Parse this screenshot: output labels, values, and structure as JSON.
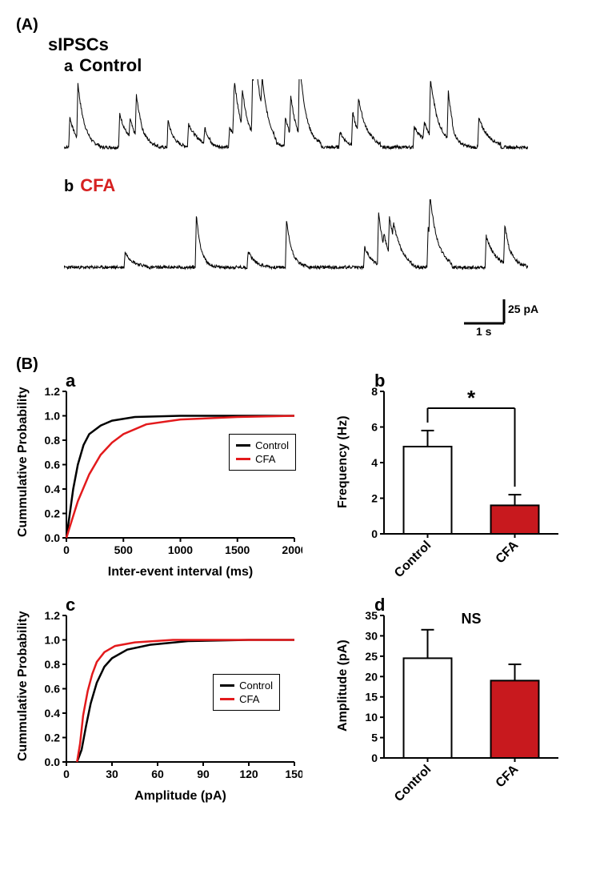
{
  "figure": {
    "panelA": {
      "label": "(A)",
      "heading": "sIPSCs",
      "traces": {
        "a": {
          "sublabel": "a",
          "title": "Control",
          "title_color": "#000000"
        },
        "b": {
          "sublabel": "b",
          "title": "CFA",
          "title_color": "#d62020"
        }
      },
      "scalebar": {
        "y_text": "25 pA",
        "x_text": "1 s"
      },
      "trace_color": "#000000",
      "trace_linewidth": 1.0
    },
    "panelB": {
      "label": "(B)",
      "charts": {
        "a": {
          "sublabel": "a",
          "type": "line",
          "xlabel": "Inter-event interval (ms)",
          "ylabel": "Cummulative Probability",
          "xlim": [
            0,
            2000
          ],
          "xticks": [
            0,
            500,
            1000,
            1500,
            2000
          ],
          "ylim": [
            0,
            1.2
          ],
          "yticks": [
            0.0,
            0.2,
            0.4,
            0.6,
            0.8,
            1.0,
            1.2
          ],
          "series": [
            {
              "name": "Control",
              "color": "#000000",
              "points": [
                [
                  0,
                  0
                ],
                [
                  30,
                  0.2
                ],
                [
                  60,
                  0.4
                ],
                [
                  100,
                  0.6
                ],
                [
                  150,
                  0.76
                ],
                [
                  200,
                  0.85
                ],
                [
                  300,
                  0.92
                ],
                [
                  400,
                  0.96
                ],
                [
                  600,
                  0.99
                ],
                [
                  1000,
                  1.0
                ],
                [
                  2000,
                  1.0
                ]
              ]
            },
            {
              "name": "CFA",
              "color": "#e31a1c",
              "points": [
                [
                  0,
                  0
                ],
                [
                  50,
                  0.15
                ],
                [
                  100,
                  0.3
                ],
                [
                  200,
                  0.52
                ],
                [
                  300,
                  0.68
                ],
                [
                  400,
                  0.78
                ],
                [
                  500,
                  0.85
                ],
                [
                  700,
                  0.93
                ],
                [
                  1000,
                  0.97
                ],
                [
                  1500,
                  0.99
                ],
                [
                  2000,
                  1.0
                ]
              ]
            }
          ],
          "linewidth": 2.5,
          "legend_items": [
            {
              "label": "Control",
              "color": "#000000"
            },
            {
              "label": "CFA",
              "color": "#e31a1c"
            }
          ]
        },
        "b": {
          "sublabel": "b",
          "type": "bar",
          "ylabel": "Frequency (Hz)",
          "ylim": [
            0,
            8
          ],
          "yticks": [
            0,
            2,
            4,
            6,
            8
          ],
          "categories": [
            "Control",
            "CFA"
          ],
          "values": [
            4.9,
            1.6
          ],
          "errors": [
            0.9,
            0.6
          ],
          "bar_colors": [
            "#ffffff",
            "#c8191e"
          ],
          "bar_border": "#000000",
          "annotation": "*",
          "annotation_fontsize": 26
        },
        "c": {
          "sublabel": "c",
          "type": "line",
          "xlabel": "Amplitude (pA)",
          "ylabel": "Cummulative Probability",
          "xlim": [
            0,
            150
          ],
          "xticks": [
            0,
            30,
            60,
            90,
            120,
            150
          ],
          "ylim": [
            0,
            1.2
          ],
          "yticks": [
            0.0,
            0.2,
            0.4,
            0.6,
            0.8,
            1.0,
            1.2
          ],
          "series": [
            {
              "name": "Control",
              "color": "#000000",
              "points": [
                [
                  7,
                  0
                ],
                [
                  10,
                  0.1
                ],
                [
                  13,
                  0.3
                ],
                [
                  16,
                  0.48
                ],
                [
                  20,
                  0.65
                ],
                [
                  25,
                  0.78
                ],
                [
                  30,
                  0.85
                ],
                [
                  40,
                  0.92
                ],
                [
                  55,
                  0.96
                ],
                [
                  80,
                  0.99
                ],
                [
                  120,
                  1.0
                ],
                [
                  150,
                  1.0
                ]
              ]
            },
            {
              "name": "CFA",
              "color": "#e31a1c",
              "points": [
                [
                  7,
                  0
                ],
                [
                  9,
                  0.15
                ],
                [
                  11,
                  0.38
                ],
                [
                  14,
                  0.58
                ],
                [
                  17,
                  0.72
                ],
                [
                  20,
                  0.82
                ],
                [
                  25,
                  0.9
                ],
                [
                  32,
                  0.95
                ],
                [
                  45,
                  0.98
                ],
                [
                  70,
                  1.0
                ],
                [
                  150,
                  1.0
                ]
              ]
            }
          ],
          "linewidth": 2.5,
          "legend_items": [
            {
              "label": "Control",
              "color": "#000000"
            },
            {
              "label": "CFA",
              "color": "#e31a1c"
            }
          ]
        },
        "d": {
          "sublabel": "d",
          "type": "bar",
          "ylabel": "Amplitude (pA)",
          "ylim": [
            0,
            35
          ],
          "yticks": [
            0,
            5,
            10,
            15,
            20,
            25,
            30,
            35
          ],
          "categories": [
            "Control",
            "CFA"
          ],
          "values": [
            24.5,
            19.0
          ],
          "errors": [
            7.0,
            4.0
          ],
          "bar_colors": [
            "#ffffff",
            "#c8191e"
          ],
          "bar_border": "#000000",
          "annotation": "NS",
          "annotation_fontsize": 18
        }
      },
      "axis_linewidth": 2,
      "label_fontsize": 16,
      "tick_fontsize": 14
    }
  }
}
